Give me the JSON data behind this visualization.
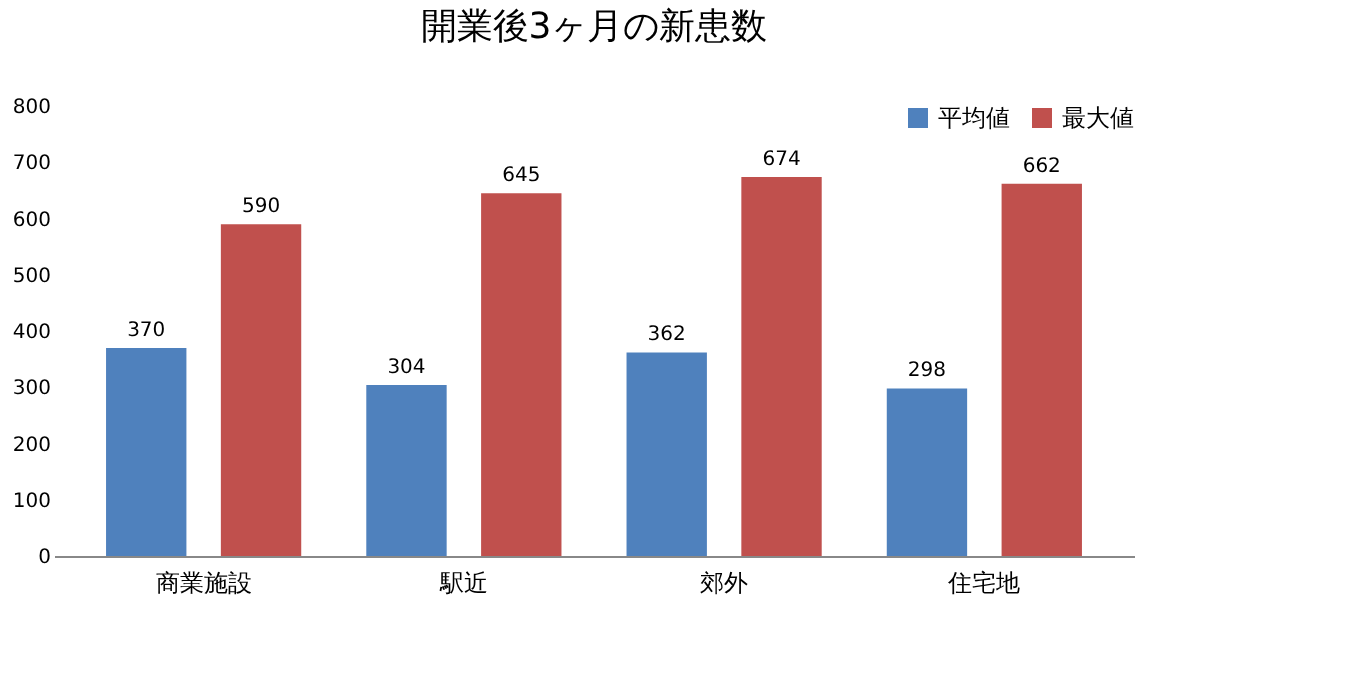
{
  "chart_data": {
    "type": "bar",
    "title": "開業後3ヶ月の新患数",
    "categories": [
      "商業施設",
      "駅近",
      "郊外",
      "住宅地"
    ],
    "series": [
      {
        "name": "平均値",
        "color": "#4f81bd",
        "values": [
          370,
          304,
          362,
          298
        ]
      },
      {
        "name": "最大値",
        "color": "#c0504d",
        "values": [
          590,
          645,
          674,
          662
        ]
      }
    ],
    "ylim": [
      0,
      800
    ],
    "yticks": [
      0,
      100,
      200,
      300,
      400,
      500,
      600,
      700,
      800
    ],
    "grid": false,
    "legend": "top right",
    "data_labels": true
  }
}
